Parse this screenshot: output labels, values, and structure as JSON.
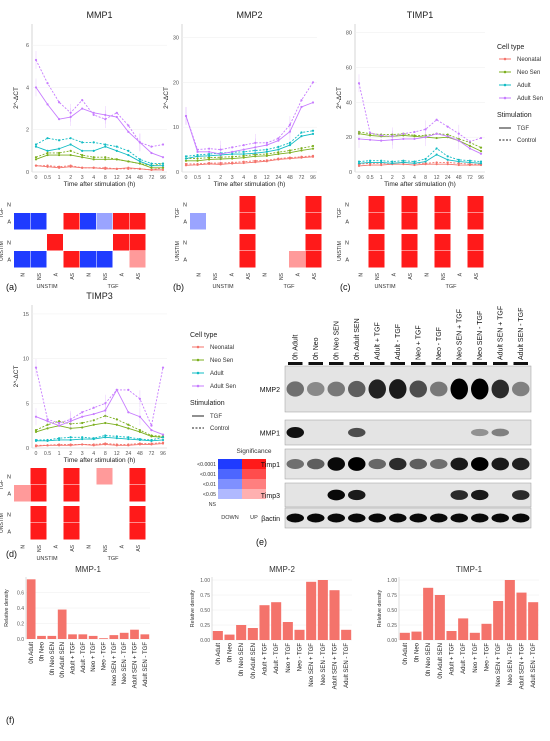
{
  "panel_labels": {
    "a": "(a)",
    "b": "(b)",
    "c": "(c)",
    "d": "(d)",
    "e": "(e)",
    "f": "(f)"
  },
  "line_colors": {
    "Neonatal": "#f4736b",
    "Neo Sen": "#7caf1f",
    "Adult": "#12bcc4",
    "Adult Sen": "#c77cff"
  },
  "heat_colors": {
    "down_strong": "#1f3bff",
    "down_light": "#9aa4ff",
    "up_strong": "#ff1a1a",
    "up_light": "#ff9a9a",
    "ns": "#ffffff"
  },
  "common": {
    "ylabel": "2^-ΔCT",
    "xlabel": "Time after stimulation (h)",
    "time_ticks": [
      "0",
      "0.5",
      "1",
      "2",
      "3",
      "4",
      "8",
      "12",
      "24",
      "48",
      "72",
      "96"
    ],
    "heat_rows": [
      "N",
      "A"
    ],
    "heat_groups": [
      "TGF",
      "UNSTIM"
    ],
    "heat_cols": [
      "N",
      "NS",
      "A",
      "AS",
      "N",
      "NS",
      "A",
      "AS"
    ],
    "heat_xgroups": [
      "UNSTIM",
      "TGF"
    ]
  },
  "legend": {
    "cell_type_title": "Cell type",
    "cell_types": [
      "Neonatal",
      "Neo Sen",
      "Adult",
      "Adult Sen"
    ],
    "stim_title": "Stimulation",
    "stim": [
      "TGF",
      "Control"
    ]
  },
  "sig_legend": {
    "title": "Significance",
    "levels": [
      "<0.0001",
      "<0.001",
      "<0.01",
      "<0.05",
      "NS"
    ],
    "cols": [
      "DOWN",
      "UP"
    ]
  },
  "chart_data": [
    {
      "type": "line",
      "title": "MMP1",
      "ylim": [
        0,
        7
      ],
      "yticks": [
        "0",
        "2",
        "4",
        "6"
      ],
      "series": [
        {
          "name": "Neonatal",
          "tgf": [
            0.3,
            0.25,
            0.2,
            0.25,
            0.2,
            0.2,
            0.15,
            0.15,
            0.2,
            0.15,
            0.1,
            0.1
          ],
          "ctrl": [
            0.3,
            0.3,
            0.25,
            0.3,
            0.2,
            0.2,
            0.2,
            0.15,
            0.15,
            0.15,
            0.1,
            0.2
          ]
        },
        {
          "name": "Neo Sen",
          "tgf": [
            0.6,
            0.8,
            0.8,
            0.8,
            0.7,
            0.6,
            0.6,
            0.6,
            0.5,
            0.4,
            0.2,
            0.2
          ],
          "ctrl": [
            0.7,
            0.9,
            0.9,
            1.0,
            0.8,
            0.7,
            0.7,
            0.6,
            0.5,
            0.4,
            0.3,
            0.4
          ]
        },
        {
          "name": "Adult",
          "tgf": [
            1.2,
            1.0,
            1.1,
            1.3,
            1.0,
            1.0,
            1.2,
            1.0,
            0.8,
            0.5,
            0.3,
            0.3
          ],
          "ctrl": [
            1.3,
            1.6,
            1.5,
            1.6,
            1.4,
            1.4,
            1.3,
            1.2,
            1.0,
            0.6,
            0.4,
            0.4
          ]
        },
        {
          "name": "Adult Sen",
          "tgf": [
            4.0,
            3.2,
            2.5,
            2.6,
            3.0,
            2.8,
            2.7,
            2.6,
            1.9,
            1.4,
            0.9,
            0.7
          ],
          "ctrl": [
            5.3,
            4.2,
            3.3,
            2.8,
            3.4,
            2.7,
            2.5,
            2.8,
            2.2,
            1.4,
            1.2,
            1.3
          ]
        }
      ]
    },
    {
      "type": "line",
      "title": "MMP2",
      "ylim": [
        0,
        33
      ],
      "yticks": [
        "0",
        "10",
        "20",
        "30"
      ],
      "series": [
        {
          "name": "Neonatal",
          "tgf": [
            1.5,
            1.6,
            1.8,
            1.7,
            1.9,
            2.0,
            2.2,
            2.4,
            2.8,
            3.0,
            3.2,
            3.4
          ],
          "ctrl": [
            1.8,
            1.8,
            2.0,
            2.0,
            2.1,
            2.3,
            2.5,
            2.6,
            3.0,
            3.2,
            3.4,
            3.6
          ]
        },
        {
          "name": "Neo Sen",
          "tgf": [
            2.5,
            2.5,
            2.8,
            2.9,
            3.0,
            3.2,
            3.5,
            3.6,
            4.0,
            4.3,
            4.8,
            5.2
          ],
          "ctrl": [
            3.0,
            3.0,
            3.2,
            3.3,
            3.4,
            3.6,
            3.9,
            4.0,
            4.4,
            4.8,
            5.3,
            5.8
          ]
        },
        {
          "name": "Adult",
          "tgf": [
            3.0,
            3.5,
            3.6,
            3.8,
            4.0,
            4.0,
            4.2,
            4.5,
            5.0,
            6.0,
            8.0,
            8.5
          ],
          "ctrl": [
            3.5,
            3.8,
            4.0,
            4.2,
            4.4,
            4.5,
            4.8,
            5.0,
            5.6,
            6.5,
            8.8,
            9.2
          ]
        },
        {
          "name": "Adult Sen",
          "tgf": [
            12.5,
            4.5,
            4.5,
            4.0,
            4.5,
            5.0,
            5.5,
            6.0,
            7.0,
            9.0,
            14.5,
            15.5
          ],
          "ctrl": [
            12.5,
            5.0,
            5.2,
            5.0,
            5.5,
            6.0,
            6.5,
            6.5,
            7.5,
            10.5,
            16.0,
            20.0
          ]
        }
      ]
    },
    {
      "type": "line",
      "title": "TIMP1",
      "ylim": [
        0,
        85
      ],
      "yticks": [
        "0",
        "20",
        "40",
        "60",
        "80"
      ],
      "series": [
        {
          "name": "Neonatal",
          "tgf": [
            3.5,
            4.0,
            4.0,
            4.5,
            4.5,
            4.0,
            4.5,
            4.5,
            4.5,
            4.0,
            4.0,
            4.0
          ],
          "ctrl": [
            4.5,
            5.0,
            5.0,
            5.0,
            5.5,
            5.0,
            5.0,
            5.5,
            5.5,
            5.0,
            4.5,
            4.5
          ]
        },
        {
          "name": "Neo Sen",
          "tgf": [
            22.0,
            21.0,
            20.5,
            20.5,
            21.0,
            20.5,
            20.0,
            19.5,
            20.0,
            18.0,
            15.0,
            12.0
          ],
          "ctrl": [
            23.0,
            22.0,
            21.5,
            21.5,
            22.0,
            21.0,
            21.0,
            22.0,
            21.5,
            19.0,
            17.0,
            14.0
          ]
        },
        {
          "name": "Adult",
          "tgf": [
            5.0,
            5.5,
            5.5,
            5.0,
            5.5,
            5.0,
            6.0,
            10.0,
            7.0,
            6.0,
            5.5,
            5.0
          ],
          "ctrl": [
            6.0,
            6.5,
            6.5,
            6.0,
            6.5,
            6.0,
            7.5,
            13.5,
            9.0,
            7.0,
            6.5,
            6.0
          ]
        },
        {
          "name": "Adult Sen",
          "tgf": [
            19.0,
            18.5,
            18.0,
            18.5,
            19.0,
            19.0,
            20.0,
            22.0,
            20.5,
            18.0,
            13.5,
            10.5
          ],
          "ctrl": [
            51.0,
            22.5,
            21.0,
            20.5,
            22.0,
            23.0,
            24.5,
            30.0,
            26.0,
            22.0,
            17.5,
            19.5
          ]
        }
      ]
    },
    {
      "type": "line",
      "title": "TIMP3",
      "ylim": [
        0,
        16
      ],
      "yticks": [
        "0",
        "5",
        "10",
        "15"
      ],
      "series": [
        {
          "name": "Neonatal",
          "tgf": [
            0.2,
            0.3,
            0.3,
            0.3,
            0.4,
            0.3,
            0.4,
            0.3,
            0.3,
            0.4,
            0.4,
            0.5
          ],
          "ctrl": [
            0.3,
            0.3,
            0.4,
            0.4,
            0.4,
            0.4,
            0.5,
            0.4,
            0.4,
            0.5,
            0.5,
            0.6
          ]
        },
        {
          "name": "Neo Sen",
          "tgf": [
            1.8,
            2.2,
            2.5,
            2.2,
            2.3,
            2.6,
            2.8,
            2.6,
            2.2,
            1.8,
            1.3,
            1.2
          ],
          "ctrl": [
            2.0,
            2.6,
            3.0,
            2.7,
            2.8,
            3.1,
            3.6,
            3.2,
            2.6,
            2.0,
            1.4,
            1.3
          ]
        },
        {
          "name": "Adult",
          "tgf": [
            0.8,
            0.8,
            0.9,
            0.9,
            1.0,
            1.0,
            1.2,
            1.1,
            1.0,
            0.9,
            0.8,
            0.9
          ],
          "ctrl": [
            0.9,
            0.9,
            1.1,
            1.2,
            1.2,
            1.1,
            1.4,
            1.3,
            1.2,
            1.0,
            0.9,
            1.2
          ]
        },
        {
          "name": "Adult Sen",
          "tgf": [
            3.5,
            3.0,
            2.5,
            3.0,
            3.5,
            3.8,
            4.2,
            6.5,
            4.0,
            3.5,
            2.0,
            1.5
          ],
          "ctrl": [
            9.0,
            3.2,
            2.8,
            3.2,
            4.0,
            4.5,
            5.0,
            6.5,
            6.5,
            5.5,
            2.5,
            9.0
          ]
        }
      ]
    },
    {
      "type": "heatmap",
      "title": "MMP1 significance",
      "rows": [
        {
          "group": "TGF",
          "row": "N",
          "cells": [
            0,
            0,
            0,
            0,
            0,
            0,
            0,
            0
          ]
        },
        {
          "group": "TGF",
          "row": "A",
          "cells": [
            -2,
            -2,
            0,
            2,
            -2,
            -1,
            2,
            2
          ]
        },
        {
          "group": "UNSTIM",
          "row": "N",
          "cells": [
            0,
            0,
            2,
            0,
            0,
            0,
            2,
            2
          ]
        },
        {
          "group": "UNSTIM",
          "row": "A",
          "cells": [
            -2,
            -2,
            0,
            2,
            -2,
            -2,
            0,
            1
          ]
        }
      ]
    },
    {
      "type": "heatmap",
      "title": "MMP2 significance",
      "rows": [
        {
          "group": "TGF",
          "row": "N",
          "cells": [
            0,
            0,
            0,
            2,
            0,
            0,
            0,
            2
          ]
        },
        {
          "group": "TGF",
          "row": "A",
          "cells": [
            -1,
            0,
            0,
            2,
            0,
            0,
            0,
            2
          ]
        },
        {
          "group": "UNSTIM",
          "row": "N",
          "cells": [
            0,
            0,
            0,
            2,
            0,
            0,
            0,
            2
          ]
        },
        {
          "group": "UNSTIM",
          "row": "A",
          "cells": [
            0,
            0,
            0,
            2,
            0,
            0,
            1,
            2
          ]
        }
      ]
    },
    {
      "type": "heatmap",
      "title": "TIMP1 significance",
      "rows": [
        {
          "group": "TGF",
          "row": "N",
          "cells": [
            0,
            2,
            0,
            2,
            0,
            2,
            0,
            2
          ]
        },
        {
          "group": "TGF",
          "row": "A",
          "cells": [
            0,
            2,
            0,
            2,
            0,
            2,
            0,
            2
          ]
        },
        {
          "group": "UNSTIM",
          "row": "N",
          "cells": [
            0,
            2,
            0,
            2,
            0,
            2,
            0,
            2
          ]
        },
        {
          "group": "UNSTIM",
          "row": "A",
          "cells": [
            0,
            2,
            0,
            2,
            0,
            2,
            0,
            2
          ]
        }
      ]
    },
    {
      "type": "heatmap",
      "title": "TIMP3 significance",
      "rows": [
        {
          "group": "TGF",
          "row": "N",
          "cells": [
            0,
            2,
            0,
            2,
            0,
            1,
            0,
            2
          ]
        },
        {
          "group": "TGF",
          "row": "A",
          "cells": [
            1,
            2,
            0,
            2,
            0,
            0,
            0,
            2
          ]
        },
        {
          "group": "UNSTIM",
          "row": "N",
          "cells": [
            0,
            2,
            0,
            2,
            0,
            0,
            0,
            2
          ]
        },
        {
          "group": "UNSTIM",
          "row": "A",
          "cells": [
            0,
            2,
            0,
            2,
            0,
            0,
            0,
            2
          ]
        }
      ]
    },
    {
      "type": "bar",
      "title": "MMP-1",
      "ylabel": "Relative density",
      "ylim": [
        0,
        0.8
      ],
      "yticks": [
        "0.0",
        "0.2",
        "0.4",
        "0.6"
      ],
      "categories": [
        "0h Adult",
        "0h Neo",
        "0h Neo SEN",
        "0h Adult SEN",
        "Adult + TGF",
        "Adult - TGF",
        "Neo + TGF",
        "Neo - TGF",
        "Neo SEN + TGF",
        "Neo SEN - TGF",
        "Adult SEN + TGF",
        "Adult SEN - TGF"
      ],
      "values": [
        0.77,
        0.04,
        0.04,
        0.38,
        0.06,
        0.06,
        0.04,
        0.01,
        0.05,
        0.08,
        0.12,
        0.06
      ]
    },
    {
      "type": "bar",
      "title": "MMP-2",
      "ylabel": "Relative density",
      "ylim": [
        0,
        1.05
      ],
      "yticks": [
        "0.00",
        "0.25",
        "0.50",
        "0.75",
        "1.00"
      ],
      "categories": [
        "0h Adult",
        "0h Neo",
        "0h Neo SEN",
        "0h Adult SEN",
        "Adult + TGF",
        "Adult - TGF",
        "Neo + TGF",
        "Neo - TGF",
        "Neo SEN + TGF",
        "Neo SEN - TGF",
        "Adult SEN + TGF",
        "Adult SEN - TGF"
      ],
      "values": [
        0.15,
        0.09,
        0.25,
        0.2,
        0.58,
        0.63,
        0.3,
        0.17,
        0.97,
        1.0,
        0.83,
        0.17
      ]
    },
    {
      "type": "bar",
      "title": "TIMP-1",
      "ylabel": "Relative density",
      "ylim": [
        0,
        1.05
      ],
      "yticks": [
        "0.00",
        "0.25",
        "0.50",
        "0.75",
        "1.00"
      ],
      "categories": [
        "0h Adult",
        "0h Neo",
        "0h Neo SEN",
        "0h Adult SEN",
        "Adult + TGF",
        "Adult - TGF",
        "Neo + TGF",
        "Neo - TGF",
        "Neo SEN + TGF",
        "Neo SEN - TGF",
        "Adult SEN + TGF",
        "Adult SEN - TGF"
      ],
      "values": [
        0.12,
        0.14,
        0.87,
        0.75,
        0.15,
        0.36,
        0.12,
        0.27,
        0.65,
        1.0,
        0.79,
        0.63
      ]
    }
  ],
  "blot": {
    "lanes": [
      "0h Adult",
      "0h Neo",
      "0h Neo SEN",
      "0h Adult SEN",
      "Adult + TGF",
      "Adult - TGF",
      "Neo + TGF",
      "Neo - TGF",
      "Neo SEN + TGF",
      "Neo SEN - TGF",
      "Adult SEN + TGF",
      "Adult SEN - TGF"
    ],
    "rows": [
      {
        "name": "MMP2",
        "bands": [
          0.35,
          0.2,
          0.3,
          0.45,
          0.8,
          0.85,
          0.55,
          0.3,
          1.0,
          1.0,
          0.75,
          0.25
        ]
      },
      {
        "name": "MMP1",
        "bands": [
          0.9,
          0.0,
          0.0,
          0.55,
          0.0,
          0.0,
          0.0,
          0.0,
          0.0,
          0.15,
          0.25,
          0.0
        ]
      },
      {
        "name": "Timp1",
        "bands": [
          0.35,
          0.45,
          0.95,
          1.0,
          0.4,
          0.75,
          0.45,
          0.35,
          0.85,
          1.0,
          0.85,
          0.8
        ]
      },
      {
        "name": "Timp3",
        "bands": [
          0.0,
          0.0,
          0.95,
          0.85,
          0.0,
          0.0,
          0.0,
          0.0,
          0.75,
          0.85,
          0.0,
          0.75
        ]
      },
      {
        "name": "βactin",
        "bands": [
          0.95,
          0.95,
          0.95,
          0.95,
          0.95,
          0.95,
          0.95,
          0.95,
          0.95,
          0.95,
          0.95,
          0.95
        ]
      }
    ]
  }
}
